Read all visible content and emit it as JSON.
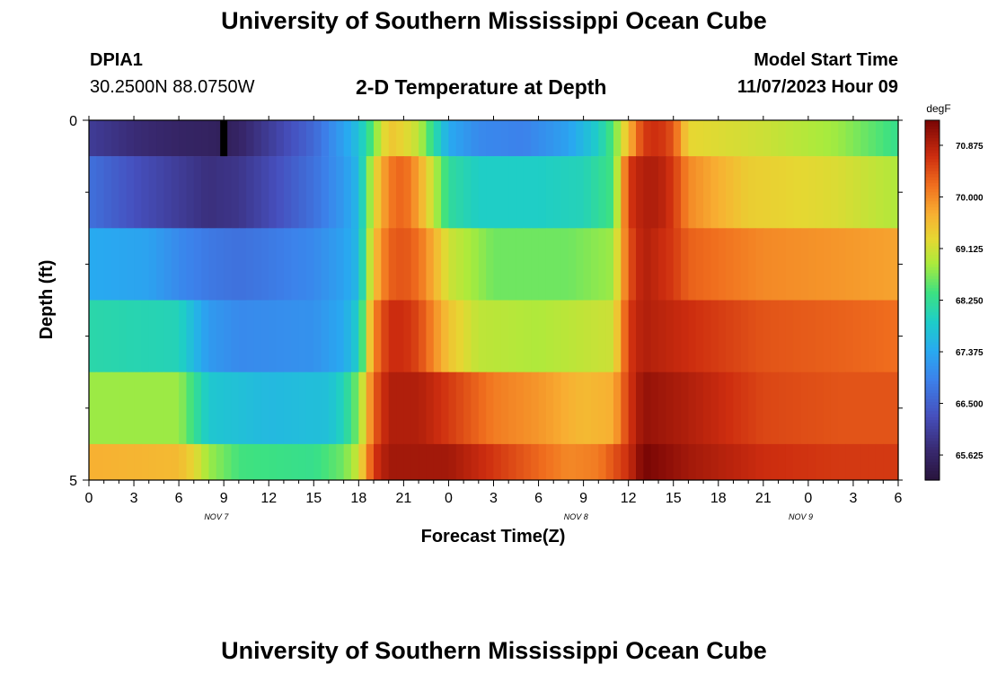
{
  "header": {
    "title": "University of Southern Mississippi Ocean Cube",
    "station_id": "DPIA1",
    "station_coords": "30.2500N  88.0750W",
    "subtitle": "2-D Temperature at Depth",
    "model_start_label": "Model Start Time",
    "model_start_value": "11/07/2023 Hour 09"
  },
  "footer": {
    "title": "University of Southern Mississippi Ocean Cube"
  },
  "chart_data": {
    "type": "heatmap",
    "title": "2-D Temperature at Depth",
    "xlabel": "Forecast Time(Z)",
    "ylabel": "Depth (ft)",
    "colorbar_unit": "degF",
    "x_tick_labels": [
      "0",
      "3",
      "6",
      "9",
      "12",
      "15",
      "18",
      "21",
      "0",
      "3",
      "6",
      "9",
      "12",
      "15",
      "18",
      "21",
      "0",
      "3",
      "6"
    ],
    "date_labels": [
      "NOV 7",
      "NOV 8",
      "NOV 9"
    ],
    "y_tick_labels": [
      "0",
      "5"
    ],
    "ylim": [
      0,
      5
    ],
    "colorbar_ticks": [
      "70.875",
      "70.000",
      "69.125",
      "68.250",
      "67.375",
      "66.500",
      "65.625"
    ],
    "colorbar_range": [
      65.2,
      71.3
    ],
    "cols_per_hour": 2,
    "hours": [
      0,
      54
    ],
    "depth_layers": [
      {
        "keys": [
          [
            0,
            66.0
          ],
          [
            3,
            65.75
          ],
          [
            6,
            65.6
          ],
          [
            8,
            65.55
          ],
          [
            9,
            65.5
          ],
          [
            10,
            65.6
          ],
          [
            12,
            66.0
          ],
          [
            15,
            66.6
          ],
          [
            17,
            67.3
          ],
          [
            18,
            67.7
          ],
          [
            19,
            68.6
          ],
          [
            20,
            69.5
          ],
          [
            21,
            69.3
          ],
          [
            22,
            69.0
          ],
          [
            23,
            68.2
          ],
          [
            24,
            67.4
          ],
          [
            26,
            67.0
          ],
          [
            29,
            66.9
          ],
          [
            32,
            67.3
          ],
          [
            34,
            67.9
          ],
          [
            35,
            68.5
          ],
          [
            36,
            69.6
          ],
          [
            37,
            70.6
          ],
          [
            38,
            70.7
          ],
          [
            39,
            70.4
          ],
          [
            40,
            69.3
          ],
          [
            45,
            69.1
          ],
          [
            50,
            68.8
          ],
          [
            54,
            68.3
          ]
        ]
      },
      {
        "keys": [
          [
            0,
            66.7
          ],
          [
            3,
            66.3
          ],
          [
            6,
            66.0
          ],
          [
            8,
            65.8
          ],
          [
            10,
            65.9
          ],
          [
            12,
            66.2
          ],
          [
            15,
            66.7
          ],
          [
            17,
            67.2
          ],
          [
            18,
            67.6
          ],
          [
            19,
            69.2
          ],
          [
            20,
            70.1
          ],
          [
            21,
            70.3
          ],
          [
            22,
            69.8
          ],
          [
            23,
            69.0
          ],
          [
            24,
            68.2
          ],
          [
            26,
            67.9
          ],
          [
            30,
            67.9
          ],
          [
            33,
            68.0
          ],
          [
            35,
            68.4
          ],
          [
            36,
            70.6
          ],
          [
            37,
            70.9
          ],
          [
            38,
            70.9
          ],
          [
            39,
            70.6
          ],
          [
            40,
            70.0
          ],
          [
            44,
            69.4
          ],
          [
            50,
            69.2
          ],
          [
            54,
            68.9
          ]
        ]
      },
      {
        "keys": [
          [
            0,
            67.4
          ],
          [
            4,
            67.3
          ],
          [
            6,
            67.0
          ],
          [
            8,
            66.8
          ],
          [
            10,
            66.7
          ],
          [
            12,
            66.8
          ],
          [
            15,
            67.0
          ],
          [
            17,
            67.3
          ],
          [
            18,
            67.6
          ],
          [
            19,
            69.5
          ],
          [
            20,
            70.3
          ],
          [
            21,
            70.4
          ],
          [
            22,
            70.2
          ],
          [
            23,
            69.7
          ],
          [
            24,
            69.1
          ],
          [
            27,
            68.6
          ],
          [
            32,
            68.6
          ],
          [
            35,
            68.8
          ],
          [
            36,
            70.4
          ],
          [
            37,
            70.9
          ],
          [
            39,
            70.6
          ],
          [
            40,
            70.3
          ],
          [
            45,
            70.0
          ],
          [
            50,
            69.9
          ],
          [
            54,
            69.8
          ]
        ]
      },
      {
        "keys": [
          [
            0,
            68.1
          ],
          [
            6,
            68.0
          ],
          [
            7,
            67.6
          ],
          [
            8,
            67.2
          ],
          [
            10,
            67.0
          ],
          [
            15,
            67.1
          ],
          [
            17,
            67.4
          ],
          [
            18,
            67.9
          ],
          [
            19,
            70.0
          ],
          [
            20,
            70.7
          ],
          [
            21,
            70.7
          ],
          [
            22,
            70.5
          ],
          [
            23,
            70.0
          ],
          [
            24,
            69.5
          ],
          [
            26,
            69.0
          ],
          [
            30,
            68.9
          ],
          [
            35,
            69.1
          ],
          [
            36,
            70.6
          ],
          [
            37,
            70.9
          ],
          [
            40,
            70.7
          ],
          [
            45,
            70.4
          ],
          [
            50,
            70.3
          ],
          [
            54,
            70.2
          ]
        ]
      },
      {
        "keys": [
          [
            0,
            68.8
          ],
          [
            6,
            68.8
          ],
          [
            7,
            68.3
          ],
          [
            8,
            67.8
          ],
          [
            12,
            67.6
          ],
          [
            16,
            67.7
          ],
          [
            17,
            68.0
          ],
          [
            18,
            68.7
          ],
          [
            19,
            70.3
          ],
          [
            20,
            70.9
          ],
          [
            22,
            70.9
          ],
          [
            24,
            70.6
          ],
          [
            27,
            70.1
          ],
          [
            30,
            69.9
          ],
          [
            33,
            69.6
          ],
          [
            35,
            69.7
          ],
          [
            36,
            70.6
          ],
          [
            37,
            71.1
          ],
          [
            40,
            70.9
          ],
          [
            45,
            70.5
          ],
          [
            50,
            70.4
          ],
          [
            54,
            70.4
          ]
        ]
      },
      {
        "keys": [
          [
            0,
            69.7
          ],
          [
            6,
            69.6
          ],
          [
            7,
            69.3
          ],
          [
            8,
            68.8
          ],
          [
            10,
            68.4
          ],
          [
            15,
            68.3
          ],
          [
            17,
            68.6
          ],
          [
            18,
            69.1
          ],
          [
            19,
            70.6
          ],
          [
            20,
            71.0
          ],
          [
            24,
            71.0
          ],
          [
            28,
            70.5
          ],
          [
            32,
            70.0
          ],
          [
            34,
            70.1
          ],
          [
            36,
            70.7
          ],
          [
            37,
            71.3
          ],
          [
            40,
            71.0
          ],
          [
            45,
            70.7
          ],
          [
            50,
            70.6
          ],
          [
            54,
            70.6
          ]
        ]
      }
    ],
    "missing_cell": {
      "hour": 9,
      "layer": 0
    }
  }
}
